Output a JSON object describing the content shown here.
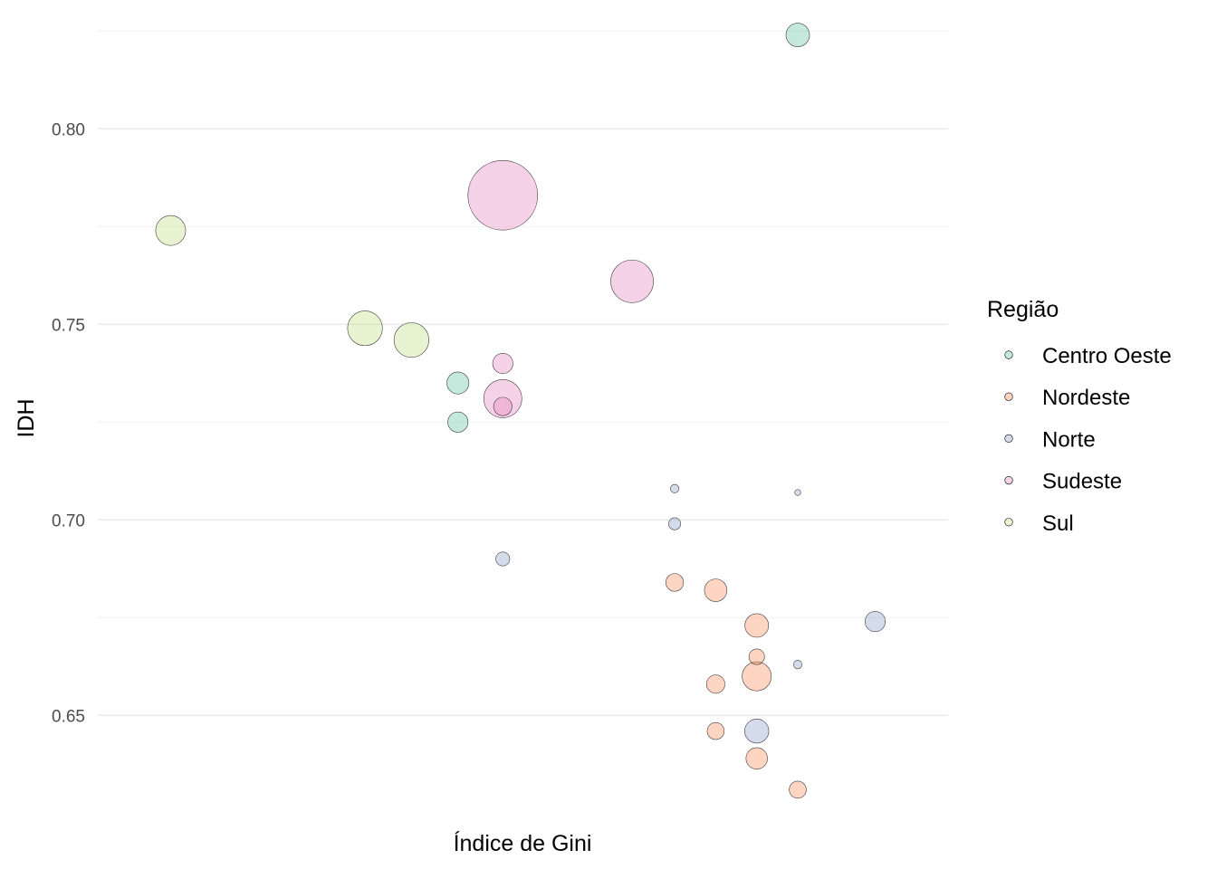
{
  "chart_data": {
    "type": "scatter",
    "xlabel": "Índice de Gini",
    "ylabel": "IDH",
    "xlim": [
      0,
      1
    ],
    "ylim": [
      0.626,
      0.826
    ],
    "yticks": [
      {
        "value": 0.65,
        "label": "0.65"
      },
      {
        "value": 0.7,
        "label": "0.70"
      },
      {
        "value": 0.75,
        "label": "0.75"
      },
      {
        "value": 0.8,
        "label": "0.80"
      }
    ],
    "grid": true,
    "legend": {
      "title": "Região",
      "placement": "right",
      "entries": [
        {
          "name": "Centro Oeste",
          "color": "#66C2A5"
        },
        {
          "name": "Nordeste",
          "color": "#FC8D62"
        },
        {
          "name": "Norte",
          "color": "#8DA0CB"
        },
        {
          "name": "Sudeste",
          "color": "#E78AC3"
        },
        {
          "name": "Sul",
          "color": "#C2E285"
        }
      ]
    },
    "series": [
      {
        "name": "Centro Oeste",
        "color": "#66C2A5",
        "points": [
          {
            "x": 0.855,
            "y": 0.824,
            "size": 2.3
          },
          {
            "x": 0.416,
            "y": 0.735,
            "size": 2.0
          },
          {
            "x": 0.416,
            "y": 0.725,
            "size": 1.7
          }
        ]
      },
      {
        "name": "Nordeste",
        "color": "#FC8D62",
        "points": [
          {
            "x": 0.696,
            "y": 0.684,
            "size": 1.3
          },
          {
            "x": 0.749,
            "y": 0.682,
            "size": 2.1
          },
          {
            "x": 0.802,
            "y": 0.673,
            "size": 2.3
          },
          {
            "x": 0.802,
            "y": 0.665,
            "size": 1.0
          },
          {
            "x": 0.802,
            "y": 0.66,
            "size": 3.5
          },
          {
            "x": 0.749,
            "y": 0.658,
            "size": 1.4
          },
          {
            "x": 0.749,
            "y": 0.646,
            "size": 1.2
          },
          {
            "x": 0.802,
            "y": 0.639,
            "size": 1.9
          },
          {
            "x": 0.855,
            "y": 0.631,
            "size": 1.2
          }
        ]
      },
      {
        "name": "Norte",
        "color": "#8DA0CB",
        "points": [
          {
            "x": 0.696,
            "y": 0.708,
            "size": 0.3
          },
          {
            "x": 0.855,
            "y": 0.707,
            "size": 0.15
          },
          {
            "x": 0.696,
            "y": 0.699,
            "size": 0.6
          },
          {
            "x": 0.474,
            "y": 0.69,
            "size": 0.8
          },
          {
            "x": 0.955,
            "y": 0.674,
            "size": 1.7
          },
          {
            "x": 0.855,
            "y": 0.663,
            "size": 0.3
          },
          {
            "x": 0.802,
            "y": 0.646,
            "size": 2.4
          }
        ]
      },
      {
        "name": "Sudeste",
        "color": "#E78AC3",
        "points": [
          {
            "x": 0.474,
            "y": 0.783,
            "size": 20
          },
          {
            "x": 0.641,
            "y": 0.761,
            "size": 7.5
          },
          {
            "x": 0.474,
            "y": 0.74,
            "size": 1.7
          },
          {
            "x": 0.474,
            "y": 0.731,
            "size": 6.0
          },
          {
            "x": 0.474,
            "y": 0.729,
            "size": 1.4
          }
        ]
      },
      {
        "name": "Sul",
        "color": "#C2E285",
        "points": [
          {
            "x": 0.045,
            "y": 0.774,
            "size": 3.7
          },
          {
            "x": 0.296,
            "y": 0.749,
            "size": 5.0
          },
          {
            "x": 0.356,
            "y": 0.746,
            "size": 5.0
          }
        ]
      }
    ]
  }
}
